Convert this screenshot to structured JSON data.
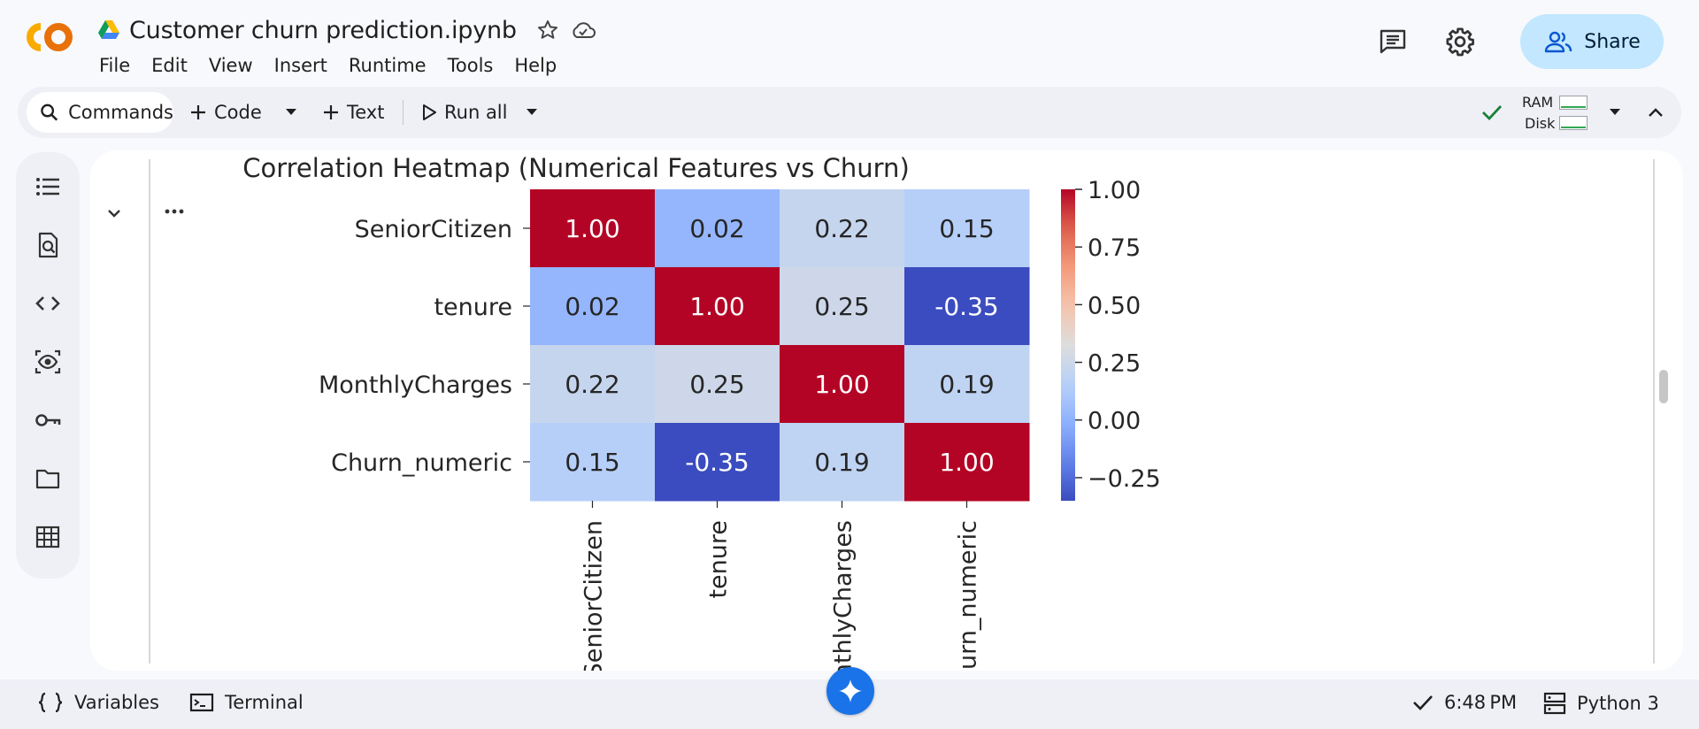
{
  "header": {
    "logo_text": "CO",
    "doc_title": "Customer churn prediction.ipynb",
    "menu": [
      "File",
      "Edit",
      "View",
      "Insert",
      "Runtime",
      "Tools",
      "Help"
    ],
    "share_label": "Share",
    "icons": [
      "drive-icon",
      "star-icon",
      "cloud-icon",
      "comment-icon",
      "gear-icon",
      "people-icon"
    ]
  },
  "toolbar": {
    "commands_label": "Commands",
    "code_label": "Code",
    "text_label": "Text",
    "run_all_label": "Run all",
    "ram_label": "RAM",
    "disk_label": "Disk"
  },
  "sidebar": {
    "icons": [
      "toc-icon",
      "find-icon",
      "code-snippets-icon",
      "variables-inspector-icon",
      "secrets-key-icon",
      "files-folder-icon",
      "data-table-icon"
    ]
  },
  "chart_data": {
    "type": "heatmap",
    "title": "Correlation Heatmap (Numerical Features vs Churn)",
    "rows": [
      "SeniorCitizen",
      "tenure",
      "MonthlyCharges",
      "Churn_numeric"
    ],
    "columns": [
      "SeniorCitizen",
      "tenure",
      "MonthlyCharges",
      "Churn_numeric"
    ],
    "values": [
      [
        1.0,
        0.02,
        0.22,
        0.15
      ],
      [
        0.02,
        1.0,
        0.25,
        -0.35
      ],
      [
        0.22,
        0.25,
        1.0,
        0.19
      ],
      [
        0.15,
        -0.35,
        0.19,
        1.0
      ]
    ],
    "value_labels": [
      [
        "1.00",
        "0.02",
        "0.22",
        "0.15"
      ],
      [
        "0.02",
        "1.00",
        "0.25",
        "-0.35"
      ],
      [
        "0.22",
        "0.25",
        "1.00",
        "0.19"
      ],
      [
        "0.15",
        "-0.35",
        "0.19",
        "1.00"
      ]
    ],
    "colormap": "coolwarm",
    "vmin": -0.35,
    "vmax": 1.0,
    "colorbar_ticks": [
      "1.00",
      "0.75",
      "0.50",
      "0.25",
      "0.00",
      "−0.25"
    ],
    "colorbar_tick_values": [
      1.0,
      0.75,
      0.5,
      0.25,
      0.0,
      -0.25
    ],
    "x_tick_rotation": "vertical"
  },
  "status_bar": {
    "variables_label": "Variables",
    "terminal_label": "Terminal",
    "time": "6:48 PM",
    "runtime": "Python 3"
  },
  "colors": {
    "share_bg": "#c2e7ff",
    "gemini_bg": "#1a73e8",
    "connected_check": "#188038"
  }
}
